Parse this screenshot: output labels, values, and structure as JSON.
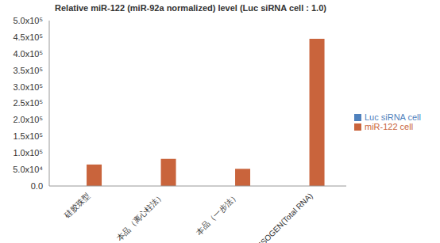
{
  "chart_data": {
    "type": "bar",
    "title": "Relative miR-122  (miR-92a normalized)  level (Luc siRNA cell : 1.0)",
    "categories": [
      "硅胶珠型",
      "本品（离心柱法）",
      "本品（一步法）",
      "ISOGEN(Total RNA)"
    ],
    "series": [
      {
        "name": "Luc siRNA cell",
        "color": "#4f81bd",
        "values": [
          1.0,
          1.0,
          1.0,
          1.0
        ]
      },
      {
        "name": "miR-122 cell",
        "color": "#c9643c",
        "values": [
          65000,
          82000,
          52000,
          445000
        ]
      }
    ],
    "ylim": [
      0,
      500000
    ],
    "yticks": [
      {
        "value": 0,
        "label": "0.0"
      },
      {
        "value": 50000,
        "label": "5.0x10⁴"
      },
      {
        "value": 100000,
        "label": "1.0x10⁵"
      },
      {
        "value": 150000,
        "label": "1.5x10⁵"
      },
      {
        "value": 200000,
        "label": "2.0x10⁵"
      },
      {
        "value": 250000,
        "label": "2.5x10⁵"
      },
      {
        "value": 300000,
        "label": "3.0x10⁵"
      },
      {
        "value": 350000,
        "label": "3.5x10⁵"
      },
      {
        "value": 400000,
        "label": "4.0x10⁵"
      },
      {
        "value": 450000,
        "label": "4.5x10⁵"
      },
      {
        "value": 500000,
        "label": "5.0x10⁵"
      }
    ],
    "grid": false,
    "legend": "right"
  }
}
